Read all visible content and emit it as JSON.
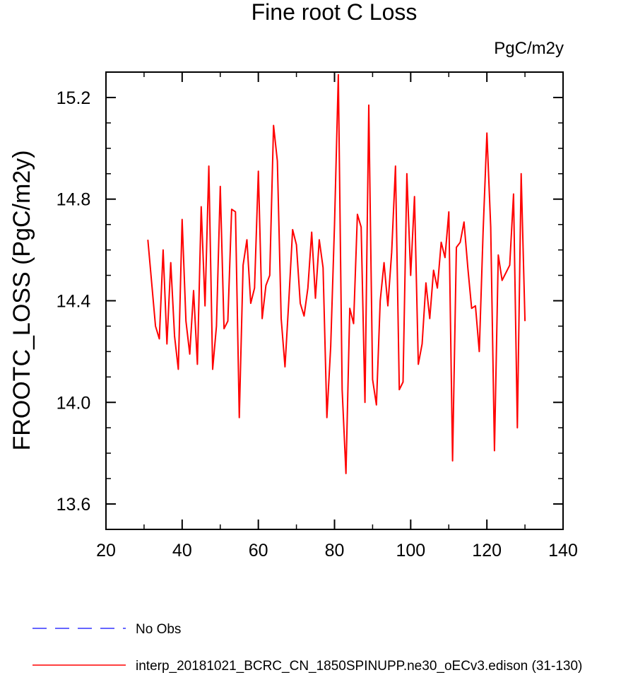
{
  "chart_data": {
    "type": "line",
    "title": "Fine root C Loss",
    "units_label": "PgC/m2y",
    "xlabel": "",
    "ylabel": "FROOTC_LOSS  (PgC/m2y)",
    "xlim": [
      20,
      140
    ],
    "ylim": [
      13.5,
      15.3
    ],
    "xticks": [
      20,
      40,
      60,
      80,
      100,
      120,
      140
    ],
    "yticks": [
      13.6,
      14.0,
      14.4,
      14.8,
      15.2
    ],
    "ytick_labels": [
      "13.6",
      "14.0",
      "14.4",
      "14.8",
      "15.2"
    ],
    "grid": false,
    "legend": [
      {
        "name": "No Obs",
        "color": "#3333ff",
        "style": "dashed"
      },
      {
        "name": "interp_20181021_BCRC_CN_1850SPINUPP.ne30_oECv3.edison (31-130)",
        "color": "#ff0000",
        "style": "solid"
      }
    ],
    "series": [
      {
        "name": "interp_20181021_BCRC_CN_1850SPINUPP.ne30_oECv3.edison (31-130)",
        "color": "#ff0000",
        "x": [
          31,
          32,
          33,
          34,
          35,
          36,
          37,
          38,
          39,
          40,
          41,
          42,
          43,
          44,
          45,
          46,
          47,
          48,
          49,
          50,
          51,
          52,
          53,
          54,
          55,
          56,
          57,
          58,
          59,
          60,
          61,
          62,
          63,
          64,
          65,
          66,
          67,
          68,
          69,
          70,
          71,
          72,
          73,
          74,
          75,
          76,
          77,
          78,
          79,
          80,
          81,
          82,
          83,
          84,
          85,
          86,
          87,
          88,
          89,
          90,
          91,
          92,
          93,
          94,
          95,
          96,
          97,
          98,
          99,
          100,
          101,
          102,
          103,
          104,
          105,
          106,
          107,
          108,
          109,
          110,
          111,
          112,
          113,
          114,
          115,
          116,
          117,
          118,
          119,
          120,
          121,
          122,
          123,
          124,
          125,
          126,
          127,
          128,
          129,
          130
        ],
        "values": [
          14.64,
          14.47,
          14.3,
          14.25,
          14.6,
          14.23,
          14.55,
          14.26,
          14.13,
          14.72,
          14.32,
          14.19,
          14.44,
          14.15,
          14.77,
          14.38,
          14.93,
          14.13,
          14.3,
          14.85,
          14.29,
          14.32,
          14.76,
          14.75,
          13.94,
          14.54,
          14.64,
          14.39,
          14.45,
          14.91,
          14.33,
          14.46,
          14.5,
          15.09,
          14.95,
          14.33,
          14.14,
          14.4,
          14.68,
          14.62,
          14.39,
          14.34,
          14.45,
          14.67,
          14.41,
          14.64,
          14.53,
          13.94,
          14.22,
          14.7,
          15.29,
          14.05,
          13.72,
          14.37,
          14.31,
          14.74,
          14.69,
          14.0,
          15.17,
          14.09,
          13.99,
          14.4,
          14.55,
          14.38,
          14.59,
          14.93,
          14.05,
          14.08,
          14.9,
          14.5,
          14.81,
          14.15,
          14.23,
          14.47,
          14.33,
          14.52,
          14.45,
          14.63,
          14.57,
          14.75,
          13.77,
          14.61,
          14.63,
          14.71,
          14.53,
          14.37,
          14.38,
          14.2,
          14.67,
          15.06,
          14.69,
          13.81,
          14.58,
          14.48,
          14.51,
          14.54,
          14.82,
          13.9,
          14.9,
          14.32
        ]
      }
    ]
  }
}
